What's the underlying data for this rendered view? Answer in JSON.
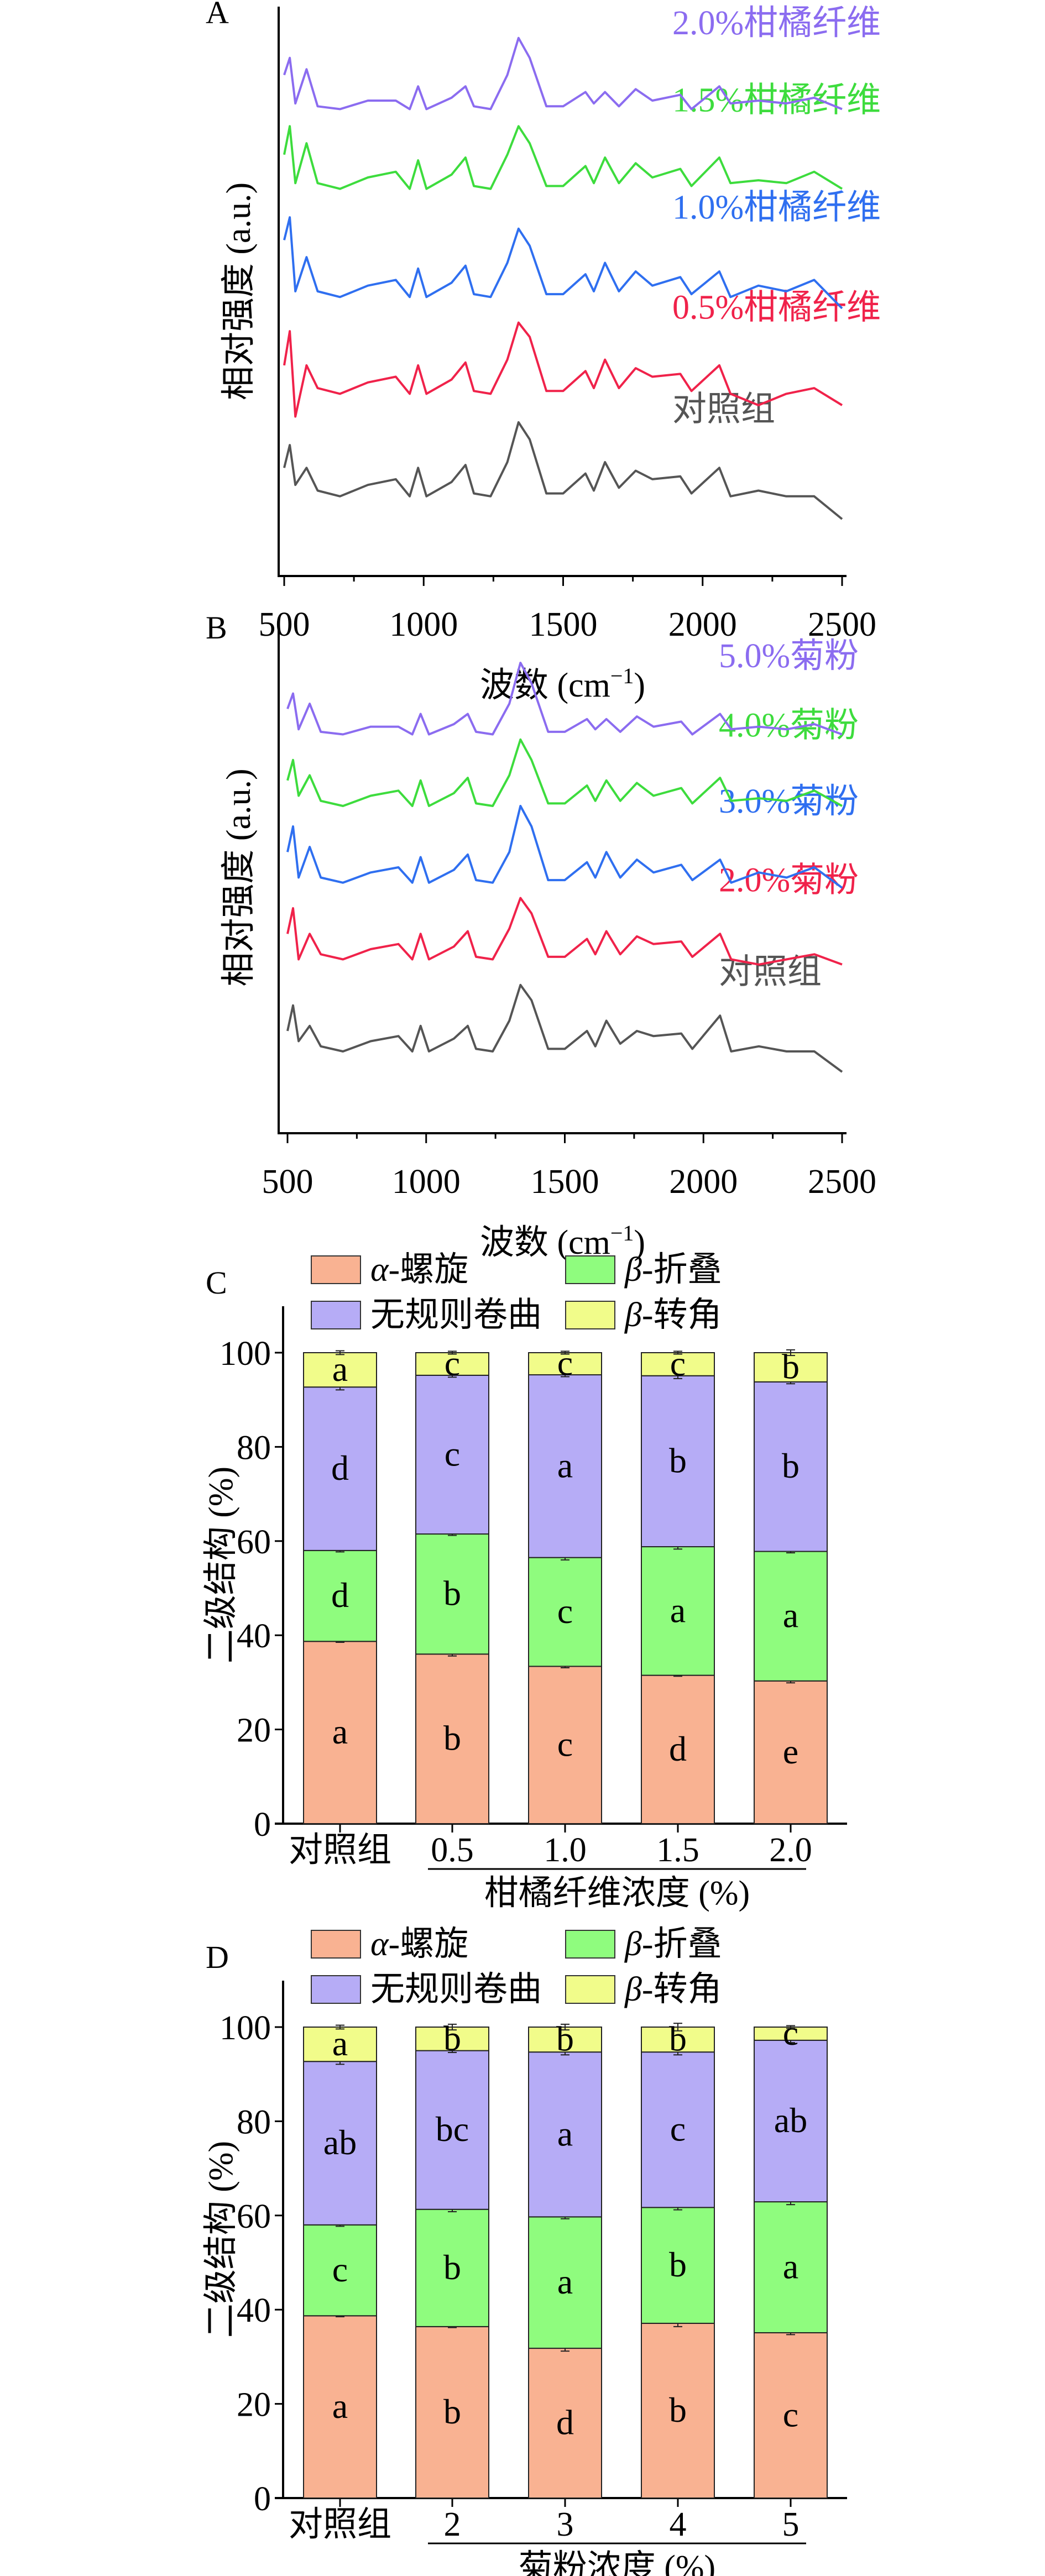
{
  "chart_data": [
    {
      "panel": "A",
      "type": "line",
      "xlabel": {
        "text": "波数 (cm",
        "sup": "−1",
        "close": ")"
      },
      "ylabel": "相对强度 (a.u.)",
      "xlim": [
        500,
        2500
      ],
      "ylim": [
        0,
        10
      ],
      "xticks": [
        500,
        1000,
        1500,
        2000,
        2500
      ],
      "grid": false,
      "x": [
        500,
        520,
        540,
        580,
        620,
        700,
        800,
        900,
        950,
        980,
        1010,
        1100,
        1150,
        1180,
        1240,
        1300,
        1340,
        1380,
        1440,
        1500,
        1580,
        1610,
        1650,
        1700,
        1760,
        1820,
        1920,
        1960,
        2060,
        2100,
        2200,
        2300,
        2400,
        2500
      ],
      "series": [
        {
          "name": "对照组",
          "color": "#555555",
          "values": [
            1.9,
            2.3,
            1.6,
            1.9,
            1.5,
            1.4,
            1.6,
            1.7,
            1.4,
            1.9,
            1.4,
            1.65,
            1.95,
            1.45,
            1.4,
            2.0,
            2.7,
            2.4,
            1.45,
            1.45,
            1.8,
            1.5,
            2.0,
            1.55,
            1.85,
            1.7,
            1.75,
            1.45,
            1.9,
            1.4,
            1.5,
            1.4,
            1.4,
            1.0
          ]
        },
        {
          "name": "0.5%柑橘纤维",
          "color": "#f0224a",
          "values": [
            3.7,
            4.3,
            2.8,
            3.7,
            3.3,
            3.2,
            3.4,
            3.5,
            3.2,
            3.7,
            3.2,
            3.45,
            3.75,
            3.25,
            3.2,
            3.8,
            4.45,
            4.2,
            3.25,
            3.25,
            3.6,
            3.3,
            3.8,
            3.3,
            3.65,
            3.5,
            3.55,
            3.25,
            3.7,
            3.2,
            3.0,
            3.2,
            3.3,
            3.0
          ]
        },
        {
          "name": "1.0%柑橘纤维",
          "color": "#2f6ff0",
          "values": [
            5.9,
            6.3,
            5.0,
            5.6,
            5.0,
            4.9,
            5.1,
            5.2,
            4.9,
            5.4,
            4.9,
            5.15,
            5.45,
            4.95,
            4.9,
            5.5,
            6.1,
            5.8,
            4.95,
            4.95,
            5.3,
            5.0,
            5.5,
            5.0,
            5.35,
            5.1,
            5.25,
            4.95,
            5.35,
            4.9,
            5.1,
            5.0,
            5.2,
            4.7
          ]
        },
        {
          "name": "1.5%柑橘纤维",
          "color": "#3ddc3d",
          "values": [
            7.4,
            7.9,
            6.9,
            7.6,
            6.9,
            6.8,
            7.0,
            7.1,
            6.8,
            7.3,
            6.8,
            7.05,
            7.35,
            6.85,
            6.8,
            7.4,
            7.9,
            7.6,
            6.85,
            6.85,
            7.2,
            6.9,
            7.35,
            6.9,
            7.25,
            7.0,
            7.15,
            6.85,
            7.35,
            6.9,
            6.95,
            6.9,
            7.1,
            6.8
          ]
        },
        {
          "name": "2.0%柑橘纤维",
          "color": "#8b6cf0",
          "values": [
            8.8,
            9.1,
            8.3,
            8.9,
            8.25,
            8.2,
            8.35,
            8.35,
            8.2,
            8.6,
            8.2,
            8.4,
            8.6,
            8.25,
            8.2,
            8.8,
            9.45,
            9.1,
            8.25,
            8.25,
            8.5,
            8.3,
            8.5,
            8.25,
            8.55,
            8.35,
            8.45,
            8.2,
            8.6,
            8.3,
            8.35,
            8.3,
            8.4,
            8.2
          ]
        }
      ]
    },
    {
      "panel": "B",
      "type": "line",
      "xlabel": {
        "text": "波数 (cm",
        "sup": "−1",
        "close": ")"
      },
      "ylabel": "相对强度 (a.u.)",
      "xlim": [
        500,
        2500
      ],
      "ylim": [
        0,
        10
      ],
      "xticks": [
        500,
        1000,
        1500,
        2000,
        2500
      ],
      "grid": false,
      "x": [
        500,
        520,
        540,
        580,
        620,
        700,
        800,
        900,
        950,
        980,
        1010,
        1100,
        1150,
        1180,
        1240,
        1300,
        1340,
        1380,
        1440,
        1500,
        1580,
        1610,
        1650,
        1700,
        1760,
        1820,
        1920,
        1960,
        2060,
        2100,
        2200,
        2300,
        2400,
        2500
      ],
      "series": [
        {
          "name": "对照组",
          "color": "#555555",
          "values": [
            2.0,
            2.5,
            1.8,
            2.1,
            1.7,
            1.6,
            1.8,
            1.9,
            1.6,
            2.1,
            1.6,
            1.85,
            2.1,
            1.65,
            1.6,
            2.2,
            2.9,
            2.6,
            1.65,
            1.65,
            2.0,
            1.7,
            2.2,
            1.75,
            2.0,
            1.9,
            1.95,
            1.65,
            2.3,
            1.6,
            1.7,
            1.6,
            1.6,
            1.2
          ]
        },
        {
          "name": "2.0%菊粉",
          "color": "#f0224a",
          "values": [
            3.9,
            4.4,
            3.4,
            3.9,
            3.5,
            3.4,
            3.6,
            3.7,
            3.4,
            3.9,
            3.4,
            3.65,
            3.95,
            3.45,
            3.4,
            4.0,
            4.6,
            4.3,
            3.45,
            3.45,
            3.8,
            3.5,
            3.95,
            3.5,
            3.85,
            3.7,
            3.75,
            3.45,
            3.9,
            3.4,
            3.3,
            3.4,
            3.5,
            3.3
          ]
        },
        {
          "name": "3.0%菊粉",
          "color": "#2f6ff0",
          "values": [
            5.5,
            6.0,
            5.0,
            5.6,
            5.0,
            4.9,
            5.1,
            5.2,
            4.9,
            5.4,
            4.9,
            5.15,
            5.45,
            4.95,
            4.9,
            5.5,
            6.4,
            6.0,
            4.95,
            4.95,
            5.3,
            5.0,
            5.5,
            5.0,
            5.35,
            5.1,
            5.25,
            4.95,
            5.35,
            4.9,
            5.1,
            5.0,
            5.2,
            4.8
          ]
        },
        {
          "name": "4.0%菊粉",
          "color": "#3ddc3d",
          "values": [
            6.9,
            7.3,
            6.6,
            7.0,
            6.5,
            6.4,
            6.6,
            6.7,
            6.4,
            6.9,
            6.4,
            6.65,
            6.95,
            6.45,
            6.4,
            7.0,
            7.7,
            7.3,
            6.45,
            6.45,
            6.8,
            6.5,
            6.9,
            6.5,
            6.85,
            6.6,
            6.75,
            6.45,
            6.95,
            6.5,
            6.55,
            6.5,
            6.7,
            6.4
          ]
        },
        {
          "name": "5.0%菊粉",
          "color": "#8b6cf0",
          "values": [
            8.3,
            8.6,
            7.9,
            8.4,
            7.85,
            7.8,
            7.95,
            7.95,
            7.8,
            8.2,
            7.8,
            8.0,
            8.2,
            7.85,
            7.8,
            8.4,
            9.2,
            8.8,
            7.85,
            7.85,
            8.1,
            7.9,
            8.1,
            7.85,
            8.15,
            7.95,
            8.05,
            7.8,
            8.2,
            7.9,
            7.95,
            7.9,
            8.0,
            7.8
          ]
        }
      ]
    },
    {
      "panel": "C",
      "type": "bar",
      "stacked": true,
      "ylabel": "二级结构 (%)",
      "ylim": [
        0,
        110
      ],
      "yticks": [
        0,
        20,
        40,
        60,
        80,
        100
      ],
      "categories": [
        "对照组",
        "0.5",
        "1.0",
        "1.5",
        "2.0"
      ],
      "group_label": "柑橘纤维浓度 (%)",
      "legend": "top",
      "series": [
        {
          "name_greek": "α",
          "name": "-螺旋",
          "color": "#f9b292",
          "values": [
            38.7,
            36.0,
            33.4,
            31.5,
            30.3
          ],
          "errors": [
            0.2,
            0.4,
            0.3,
            0.2,
            0.4
          ],
          "letters": [
            "a",
            "b",
            "c",
            "d",
            "e"
          ]
        },
        {
          "name_greek": "β",
          "name": "-折叠",
          "color": "#8ffc7e",
          "values": [
            19.3,
            25.5,
            23.1,
            27.3,
            27.5
          ],
          "errors": [
            0.3,
            0.3,
            0.5,
            0.5,
            0.3
          ],
          "letters": [
            "d",
            "b",
            "c",
            "a",
            "a"
          ]
        },
        {
          "name_greek": "",
          "name": "无规则卷曲",
          "color": "#b6acf6",
          "values": [
            34.7,
            33.7,
            38.8,
            36.3,
            36.0
          ],
          "errors": [
            0.6,
            0.4,
            0.4,
            0.6,
            0.4
          ],
          "letters": [
            "d",
            "c",
            "a",
            "b",
            "b"
          ]
        },
        {
          "name_greek": "β",
          "name": "-转角",
          "color": "#f1fc8a",
          "values": [
            7.3,
            4.8,
            4.7,
            4.9,
            6.2
          ],
          "errors": [
            0.4,
            0.3,
            0.3,
            0.3,
            0.6
          ],
          "letters": [
            "a",
            "c",
            "c",
            "c",
            "b"
          ]
        }
      ]
    },
    {
      "panel": "D",
      "type": "bar",
      "stacked": true,
      "ylabel": "二级结构 (%)",
      "ylim": [
        0,
        110
      ],
      "yticks": [
        0,
        20,
        40,
        60,
        80,
        100
      ],
      "categories": [
        "对照组",
        "2",
        "3",
        "4",
        "5"
      ],
      "group_label": "菊粉浓度 (%)",
      "legend": "top",
      "series": [
        {
          "name_greek": "α",
          "name": "-螺旋",
          "color": "#f9b292",
          "values": [
            38.7,
            36.4,
            31.8,
            37.1,
            35.1
          ],
          "errors": [
            0.2,
            0.2,
            0.6,
            0.7,
            0.4
          ],
          "letters": [
            "a",
            "b",
            "d",
            "b",
            "c"
          ]
        },
        {
          "name_greek": "β",
          "name": "-折叠",
          "color": "#8ffc7e",
          "values": [
            19.3,
            24.9,
            27.9,
            24.6,
            27.8
          ],
          "errors": [
            0.3,
            0.5,
            0.4,
            0.5,
            0.6
          ],
          "letters": [
            "c",
            "b",
            "a",
            "b",
            "a"
          ]
        },
        {
          "name_greek": "",
          "name": "无规则卷曲",
          "color": "#b6acf6",
          "values": [
            34.7,
            33.7,
            35.0,
            33.0,
            34.3
          ],
          "errors": [
            0.6,
            0.4,
            0.6,
            0.6,
            0.5
          ],
          "letters": [
            "ab",
            "bc",
            "a",
            "c",
            "ab"
          ]
        },
        {
          "name_greek": "β",
          "name": "-转角",
          "color": "#f1fc8a",
          "values": [
            7.3,
            5.0,
            5.3,
            5.3,
            2.8
          ],
          "errors": [
            0.4,
            0.6,
            0.6,
            0.8,
            0.3
          ],
          "letters": [
            "a",
            "b",
            "b",
            "b",
            "c"
          ]
        }
      ]
    }
  ]
}
